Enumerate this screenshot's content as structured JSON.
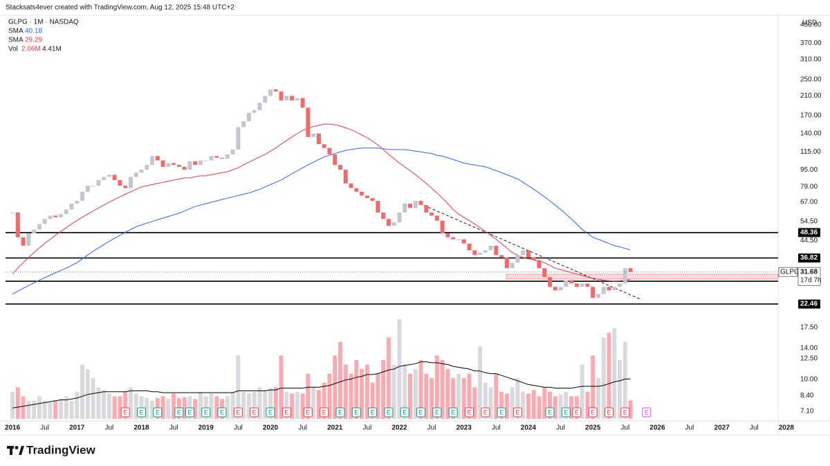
{
  "header": {
    "attribution": "Stacksats4ever created with TradingView.com, Aug 12, 2025 15:48 UTC+2"
  },
  "chart_data": {
    "type": "candlestick",
    "title": "GLPG · 1M · NASDAQ",
    "symbol": "GLPG",
    "currency": "USD",
    "countdown": "17d 7h",
    "log_scale": true,
    "up_color": "#c3c6ce",
    "down_color": "#f06a6a",
    "close": [
      60,
      46,
      42,
      48,
      50,
      53,
      56,
      58,
      57,
      59,
      62,
      66,
      68,
      75,
      80,
      80,
      85,
      88,
      90,
      85,
      80,
      78,
      88,
      92,
      95,
      100,
      110,
      105,
      98,
      102,
      100,
      98,
      95,
      104,
      100,
      105,
      105,
      110,
      108,
      107,
      112,
      118,
      150,
      160,
      175,
      180,
      195,
      210,
      225,
      220,
      200,
      210,
      200,
      205,
      185,
      135,
      140,
      125,
      120,
      112,
      100,
      95,
      82,
      78,
      75,
      72,
      70,
      68,
      60,
      56,
      52,
      54,
      60,
      66,
      63,
      68,
      65,
      60,
      58,
      55,
      48,
      46,
      45,
      45,
      43,
      40,
      38,
      39,
      40,
      42,
      38,
      37,
      33,
      35,
      38,
      40,
      37,
      36,
      33,
      30,
      27,
      26,
      27,
      29,
      28,
      27,
      28,
      27,
      24,
      25,
      27,
      26,
      27,
      28,
      33,
      31.68
    ],
    "series": [
      {
        "name": "SMA",
        "color": "#2962ff",
        "values": [
          25,
          25.8,
          26.6,
          27.4,
          28.2,
          29,
          29.8,
          30.6,
          31.4,
          32.2,
          33,
          34,
          35,
          36.5,
          38,
          39.5,
          41,
          42.5,
          44,
          45.5,
          47,
          48.5,
          50,
          51.5,
          52.5,
          53.5,
          54.5,
          55.5,
          56.5,
          57.5,
          58.5,
          59.5,
          61,
          62.5,
          64,
          65,
          66,
          67,
          68,
          69,
          70,
          71,
          72,
          73,
          74,
          75.5,
          77,
          79,
          81,
          83,
          85,
          88,
          91,
          94,
          97,
          100,
          103,
          106,
          109,
          111,
          113,
          115,
          117,
          118,
          119,
          120,
          120,
          120,
          120,
          119,
          118,
          118,
          118,
          118,
          117,
          116,
          115,
          114,
          113,
          111,
          110,
          108,
          106,
          104,
          102,
          101,
          100,
          99,
          98,
          96,
          94,
          92,
          90,
          88,
          86,
          83,
          80,
          77,
          74,
          71,
          68,
          65,
          62,
          59,
          56,
          53,
          50,
          48,
          46,
          45,
          44,
          43,
          42,
          41.5,
          40.8,
          40.18
        ]
      },
      {
        "name": "SMA",
        "color": "#f23645",
        "values": [
          31,
          33,
          35,
          37,
          39,
          41,
          43,
          45,
          47,
          49,
          51,
          53,
          55,
          57,
          59,
          61,
          63,
          65,
          67,
          69,
          71,
          73,
          75,
          77,
          79,
          80,
          81,
          82,
          83,
          84,
          85,
          86,
          87,
          87,
          88,
          89,
          89,
          90,
          91,
          92,
          93,
          95,
          97,
          100,
          103,
          106,
          109,
          112,
          116,
          120,
          125,
          130,
          135,
          140,
          145,
          148,
          151,
          153,
          155,
          155,
          154,
          152,
          149,
          146,
          142,
          138,
          134,
          129,
          124,
          118,
          112,
          107,
          102,
          98,
          94,
          90,
          86,
          82,
          78,
          74,
          70,
          66,
          62,
          59,
          57,
          55,
          53,
          51,
          49,
          47,
          45,
          43,
          41,
          39,
          38,
          37,
          36.5,
          36,
          35.5,
          35,
          34,
          33,
          32.5,
          32,
          31.5,
          31,
          30.5,
          30,
          29.6,
          29.3,
          29,
          28.8,
          28.7,
          28.8,
          29,
          29.29
        ]
      }
    ],
    "volume": {
      "name": "Vol",
      "last_label": "2.06M",
      "ma_last_label": "4.41M",
      "ma_color": "#000000",
      "ylim": [
        0,
        12
      ],
      "values": [
        3,
        3.5,
        2.5,
        2,
        2,
        2.5,
        2,
        1.8,
        2,
        2.2,
        2.5,
        2,
        3,
        6,
        5.5,
        4.5,
        3.5,
        3.2,
        2.8,
        2.5,
        2.5,
        3,
        3.5,
        2.8,
        2.5,
        2.3,
        2,
        2.3,
        2.5,
        2.2,
        2.8,
        2.3,
        2.4,
        2.5,
        2.2,
        3,
        2.5,
        2.8,
        2.5,
        2.2,
        2.5,
        3,
        7,
        3,
        2.8,
        3,
        3.5,
        3.2,
        3.4,
        3.5,
        7,
        3,
        2.8,
        3,
        2.8,
        5,
        3.5,
        3.2,
        4,
        5,
        7,
        8.5,
        6,
        5,
        6.5,
        5.5,
        6,
        4,
        5,
        6.5,
        9,
        6,
        11,
        6,
        5,
        5.5,
        6.5,
        5,
        4.5,
        7,
        6.5,
        5.5,
        4.5,
        5,
        4.5,
        5,
        3.5,
        8,
        4,
        3.5,
        5,
        3,
        2.8,
        3.5,
        4.5,
        3,
        2.8,
        3.2,
        2.5,
        3.5,
        3,
        2.5,
        2.7,
        3,
        2.5,
        2.5,
        6,
        3,
        7,
        4.5,
        9,
        9.5,
        10,
        6.5,
        8.5,
        2.06
      ],
      "ma_values": [
        1.2,
        1.3,
        1.4,
        1.5,
        1.6,
        1.7,
        1.8,
        1.9,
        2.0,
        2.1,
        2.1,
        2.2,
        2.3,
        2.5,
        2.7,
        2.8,
        2.9,
        3.0,
        3.0,
        3.0,
        3.0,
        3.0,
        3.1,
        3.1,
        3.1,
        3.1,
        3.0,
        3.0,
        2.9,
        2.9,
        2.9,
        2.9,
        2.9,
        2.9,
        2.9,
        2.9,
        2.9,
        2.9,
        2.9,
        2.9,
        2.9,
        2.9,
        3.1,
        3.1,
        3.1,
        3.1,
        3.1,
        3.1,
        3.2,
        3.2,
        3.4,
        3.4,
        3.4,
        3.4,
        3.4,
        3.5,
        3.5,
        3.5,
        3.6,
        3.7,
        3.9,
        4.1,
        4.3,
        4.4,
        4.6,
        4.7,
        4.9,
        4.9,
        5.0,
        5.2,
        5.4,
        5.5,
        5.8,
        5.9,
        6.0,
        6.1,
        6.3,
        6.3,
        6.2,
        6.2,
        6.1,
        6.0,
        5.8,
        5.7,
        5.6,
        5.5,
        5.3,
        5.3,
        5.1,
        5.0,
        5.0,
        4.8,
        4.6,
        4.4,
        4.2,
        4.0,
        3.8,
        3.7,
        3.6,
        3.5,
        3.5,
        3.4,
        3.4,
        3.4,
        3.4,
        3.5,
        3.6,
        3.6,
        3.6,
        3.6,
        3.7,
        3.9,
        4.1,
        4.2,
        4.4,
        4.41
      ]
    },
    "levels": [
      48.36,
      36.82,
      28.69,
      22.46
    ],
    "earnings_label": "E",
    "xlim": [
      -1.29,
      142.47
    ],
    "xticks": [
      {
        "value": 0,
        "label": "2016"
      },
      {
        "value": 6,
        "label": "Jul"
      },
      {
        "value": 12,
        "label": "2017"
      },
      {
        "value": 18,
        "label": "Jul"
      },
      {
        "value": 24,
        "label": "2018"
      },
      {
        "value": 30,
        "label": "Jul"
      },
      {
        "value": 36,
        "label": "2019"
      },
      {
        "value": 42,
        "label": "Jul"
      },
      {
        "value": 48,
        "label": "2020"
      },
      {
        "value": 54,
        "label": "Jul"
      },
      {
        "value": 60,
        "label": "2021"
      },
      {
        "value": 66,
        "label": "Jul"
      },
      {
        "value": 72,
        "label": "2022"
      },
      {
        "value": 78,
        "label": "Jul"
      },
      {
        "value": 84,
        "label": "2023"
      },
      {
        "value": 90,
        "label": "Jul"
      },
      {
        "value": 96,
        "label": "2024"
      },
      {
        "value": 102,
        "label": "Jul"
      },
      {
        "value": 108,
        "label": "2025"
      },
      {
        "value": 114,
        "label": "Jul"
      },
      {
        "value": 120,
        "label": "2026"
      },
      {
        "value": 126,
        "label": "Jul"
      },
      {
        "value": 132,
        "label": "2027"
      },
      {
        "value": 138,
        "label": "Jul"
      },
      {
        "value": 144,
        "label": "2028"
      }
    ],
    "ylim": [
      6.54,
      506.6
    ],
    "yticks": [
      {
        "value": 450,
        "label": "450.00"
      },
      {
        "value": 370,
        "label": "370.00"
      },
      {
        "value": 310,
        "label": "310.00"
      },
      {
        "value": 250,
        "label": "250.00"
      },
      {
        "value": 210,
        "label": "210.00"
      },
      {
        "value": 170,
        "label": "170.00"
      },
      {
        "value": 140,
        "label": "140.00"
      },
      {
        "value": 115,
        "label": "115.00"
      },
      {
        "value": 95,
        "label": "95.00"
      },
      {
        "value": 79,
        "label": "79.00"
      },
      {
        "value": 67,
        "label": "67.00"
      },
      {
        "value": 54.5,
        "label": "54.50"
      },
      {
        "value": 44.5,
        "label": "44.50"
      },
      {
        "value": 17.5,
        "label": "17.50"
      },
      {
        "value": 14,
        "label": "14.00"
      },
      {
        "value": 12.5,
        "label": "12.50"
      },
      {
        "value": 10,
        "label": "10.00"
      },
      {
        "value": 8.4,
        "label": "8.40"
      },
      {
        "value": 7.1,
        "label": "7.10"
      }
    ]
  },
  "footer": {
    "brand": "TradingView"
  }
}
